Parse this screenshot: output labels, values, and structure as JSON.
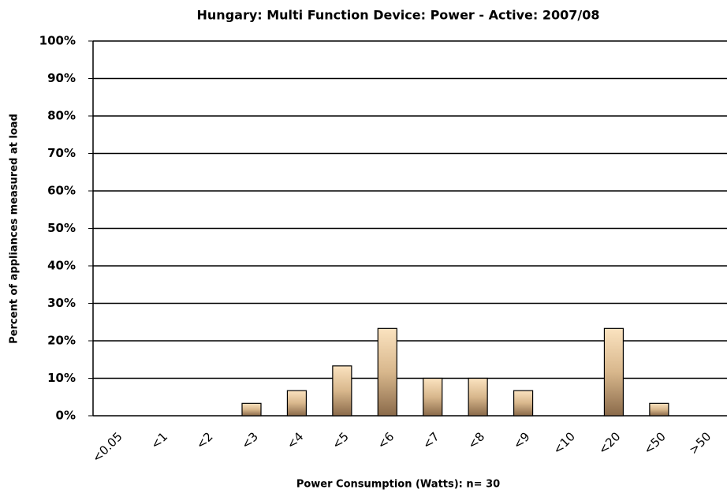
{
  "chart_data": {
    "type": "bar",
    "title": "Hungary: Multi Function Device: Power - Active: 2007/08",
    "x_label": "Power Consumption (Watts):  n= 30",
    "y_label": "Percent of appliances measured at load",
    "categories": [
      "<0.05",
      "<1",
      "<2",
      "<3",
      "<4",
      "<5",
      "<6",
      "<7",
      "<8",
      "<9",
      "<10",
      "<20",
      "<50",
      ">50"
    ],
    "values": [
      0,
      0,
      0,
      3.3,
      6.7,
      13.3,
      23.3,
      10,
      10,
      6.7,
      0,
      23.3,
      3.3,
      0
    ],
    "color": "#d8b78c",
    "ylim": [
      0,
      100
    ],
    "yticks": [
      {
        "value": 0,
        "label": "0%"
      },
      {
        "value": 10,
        "label": "10%"
      },
      {
        "value": 20,
        "label": "20%"
      },
      {
        "value": 30,
        "label": "30%"
      },
      {
        "value": 40,
        "label": "40%"
      },
      {
        "value": 50,
        "label": "50%"
      },
      {
        "value": 60,
        "label": "60%"
      },
      {
        "value": 70,
        "label": "70%"
      },
      {
        "value": 80,
        "label": "80%"
      },
      {
        "value": 90,
        "label": "90%"
      },
      {
        "value": 100,
        "label": "100%"
      }
    ],
    "grid": true
  }
}
